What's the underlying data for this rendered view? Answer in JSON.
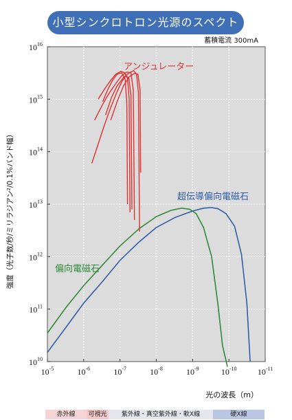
{
  "title": "小型シンクロトロン光源のスペクトル",
  "note": "蓄積電流 300mA",
  "chart_data": {
    "type": "line",
    "xlabel": "光の波長（m）",
    "ylabel": "強度（光子数/秒/ミリラジアン²/0.1%バンド幅）",
    "x_scale": "log-reversed",
    "y_scale": "log",
    "xlim": [
      1e-05,
      1e-11
    ],
    "ylim": [
      10000000000.0,
      1e+16
    ],
    "x_ticks": [
      {
        "value": 1e-05,
        "base": "10",
        "exp": "-5"
      },
      {
        "value": 1e-06,
        "base": "10",
        "exp": "-6"
      },
      {
        "value": 1e-07,
        "base": "10",
        "exp": "-7"
      },
      {
        "value": 1e-08,
        "base": "10",
        "exp": "-8"
      },
      {
        "value": 1e-09,
        "base": "10",
        "exp": "-9"
      },
      {
        "value": 1e-10,
        "base": "10",
        "exp": "-10"
      },
      {
        "value": 1e-11,
        "base": "10",
        "exp": "-11"
      }
    ],
    "y_ticks": [
      {
        "value": 10000000000.0,
        "base": "10",
        "exp": "10"
      },
      {
        "value": 100000000000.0,
        "base": "10",
        "exp": "11"
      },
      {
        "value": 1000000000000.0,
        "base": "10",
        "exp": "12"
      },
      {
        "value": 10000000000000.0,
        "base": "10",
        "exp": "13"
      },
      {
        "value": 100000000000000.0,
        "base": "10",
        "exp": "14"
      },
      {
        "value": 1000000000000000.0,
        "base": "10",
        "exp": "15"
      },
      {
        "value": 1e+16,
        "base": "10",
        "exp": "16"
      }
    ],
    "grid": true,
    "background": "#dcdcdc",
    "series": [
      {
        "name": "偏向電磁石",
        "color": "#2e8b3a",
        "x": [
          1e-05,
          3e-06,
          1e-06,
          3e-07,
          1e-07,
          3e-08,
          1e-08,
          4e-09,
          2e-09,
          1.2e-09,
          8e-10,
          5e-10,
          3e-10,
          2e-10,
          1.5e-10,
          1.1e-10
        ],
        "y": [
          35000000000.0,
          110000000000.0,
          280000000000.0,
          700000000000.0,
          1600000000000.0,
          3400000000000.0,
          5800000000000.0,
          7600000000000.0,
          8400000000000.0,
          8000000000000.0,
          6600000000000.0,
          3600000000000.0,
          1000000000000.0,
          120000000000.0,
          20000000000.0,
          8000000000.0
        ]
      },
      {
        "name": "超伝導偏向電磁石",
        "color": "#2f5ea8",
        "x": [
          1e-05,
          3e-06,
          1e-06,
          3e-07,
          1e-07,
          3e-08,
          1e-08,
          3e-09,
          1e-09,
          5e-10,
          3e-10,
          2e-10,
          1.2e-10,
          7e-11,
          4.5e-11,
          3.2e-11,
          2.6e-11
        ],
        "y": [
          15000000000.0,
          46000000000.0,
          130000000000.0,
          340000000000.0,
          850000000000.0,
          1900000000000.0,
          3600000000000.0,
          5600000000000.0,
          7400000000000.0,
          8400000000000.0,
          8600000000000.0,
          8200000000000.0,
          6600000000000.0,
          3800000000000.0,
          1100000000000.0,
          130000000000.0,
          10000000000.0
        ]
      }
    ],
    "undulator": {
      "name": "アンジュレーター",
      "color": "#e03030",
      "curves": [
        {
          "x": [
            1.8e-07,
            1.2e-07,
            8e-08,
            5.5e-08,
            4e-08,
            3.2e-08,
            2.8e-08,
            2.7e-08
          ],
          "y": [
            400000000000000.0,
            900000000000000.0,
            1800000000000000.0,
            2700000000000000.0,
            3100000000000000.0,
            3000000000000000.0,
            1500000000000000.0,
            40000000000000.0
          ]
        },
        {
          "x": [
            5e-07,
            3e-07,
            2e-07,
            1.3e-07,
            9e-08,
            6.5e-08,
            5e-08,
            4.3e-08,
            4e-08
          ],
          "y": [
            400000000000000.0,
            800000000000000.0,
            1300000000000000.0,
            2000000000000000.0,
            2800000000000000.0,
            3300000000000000.0,
            3200000000000000.0,
            1500000000000000.0,
            5000000000000.0
          ]
        },
        {
          "x": [
            2.5e-07,
            1.7e-07,
            1.2e-07,
            8e-08,
            5.5e-08,
            4.2e-08,
            3.5e-08,
            3.1e-08,
            2.9e-08
          ],
          "y": [
            500000000000000.0,
            1100000000000000.0,
            1800000000000000.0,
            2600000000000000.0,
            3200000000000000.0,
            3500000000000000.0,
            3000000000000000.0,
            1300000000000000.0,
            3000000000000.0
          ]
        },
        {
          "x": [
            4e-07,
            2.6e-07,
            1.8e-07,
            1.3e-07,
            9.5e-08,
            7.5e-08,
            6.2e-08,
            5.6e-08,
            5.3e-08
          ],
          "y": [
            1000000000000000.0,
            1600000000000000.0,
            2300000000000000.0,
            3000000000000000.0,
            3400000000000000.0,
            3200000000000000.0,
            2500000000000000.0,
            1000000000000000.0,
            7000000000000.0
          ]
        },
        {
          "x": [
            3e-07,
            2.2e-07,
            1.6e-07,
            1.2e-07,
            9e-08,
            7.2e-08,
            6.5e-08,
            6.2e-08
          ],
          "y": [
            900000000000000.0,
            1500000000000000.0,
            2300000000000000.0,
            3000000000000000.0,
            3200000000000000.0,
            2400000000000000.0,
            800000000000000.0,
            10000000000000.0
          ]
        },
        {
          "x": [
            6e-07,
            4e-07,
            2.7e-07,
            1.8e-07,
            1.2e-07,
            8.8e-08,
            6.8e-08,
            5.7e-08,
            5e-08,
            4.7e-08
          ],
          "y": [
            60000000000000.0,
            140000000000000.0,
            320000000000000.0,
            700000000000000.0,
            1400000000000000.0,
            2200000000000000.0,
            2800000000000000.0,
            2500000000000000.0,
            1200000000000000.0,
            8000000000000.0
          ]
        }
      ]
    },
    "annotations": [
      {
        "text": "アンジュレーター",
        "color": "#e03030"
      },
      {
        "text": "超伝導偏向電磁石",
        "color": "#2f5ea8"
      },
      {
        "text": "偏向電磁石",
        "color": "#2e8b3a"
      }
    ]
  },
  "bands": [
    {
      "label": "赤外線",
      "color": "#f4d4d4"
    },
    {
      "label": "可視光",
      "color": "#f5c8c8"
    },
    {
      "label": "紫外線・真空紫外線・軟X線",
      "color": "#e6e6ee"
    },
    {
      "label": "硬X線",
      "color": "#b9c6e4"
    }
  ]
}
